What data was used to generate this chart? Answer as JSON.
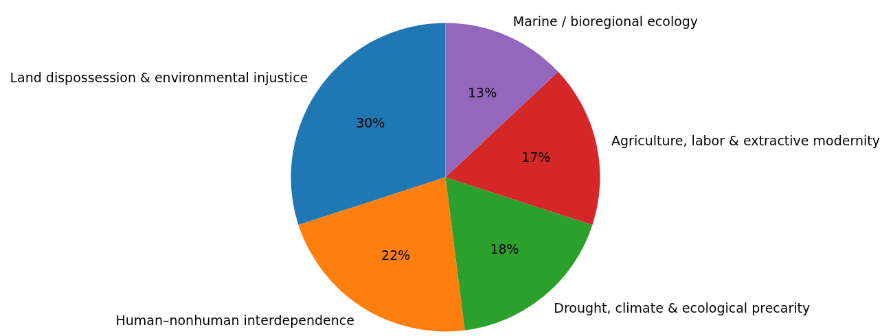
{
  "chart_data": {
    "type": "pie",
    "categories": [
      "Land dispossession & environmental injustice",
      "Human–nonhuman interdependence",
      "Drought, climate & ecological precarity",
      "Agriculture, labor & extractive modernity",
      "Marine / bioregional ecology"
    ],
    "values": [
      30,
      22,
      18,
      17,
      13
    ],
    "colors": [
      "#1f77b4",
      "#ff7f0e",
      "#2ca02c",
      "#d62728",
      "#9467bd"
    ],
    "value_labels": [
      "30%",
      "22%",
      "18%",
      "17%",
      "13%"
    ]
  }
}
